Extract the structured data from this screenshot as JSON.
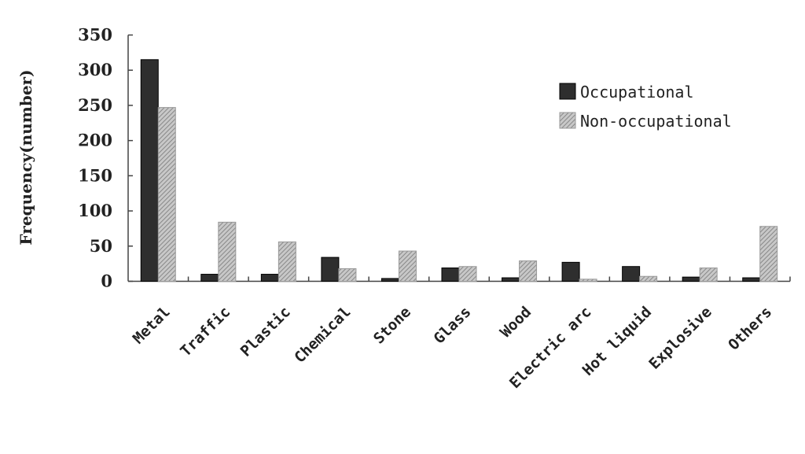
{
  "chart_data": {
    "type": "bar",
    "title": "",
    "xlabel": "",
    "ylabel": "Frequency(number)",
    "ylim": [
      0,
      350
    ],
    "yticks": [
      "0",
      "50",
      "100",
      "150",
      "200",
      "250",
      "300",
      "350"
    ],
    "grid": false,
    "legend_position": "top-right",
    "categories": [
      "Metal",
      "Traffic",
      "Plastic",
      "Chemical",
      "Stone",
      "Glass",
      "Wood",
      "Electric arc",
      "Hot liquid",
      "Explosive",
      "Others"
    ],
    "series": [
      {
        "name": "Occupational",
        "color": "#2e2e2e",
        "pattern": "solid",
        "values": [
          315,
          10,
          10,
          34,
          4,
          19,
          5,
          27,
          21,
          6,
          5
        ]
      },
      {
        "name": "Non-occupational",
        "color": "#a8a8a8",
        "pattern": "diagonal-hatch",
        "values": [
          247,
          84,
          56,
          18,
          43,
          21,
          29,
          3,
          7,
          19,
          78
        ]
      }
    ]
  }
}
